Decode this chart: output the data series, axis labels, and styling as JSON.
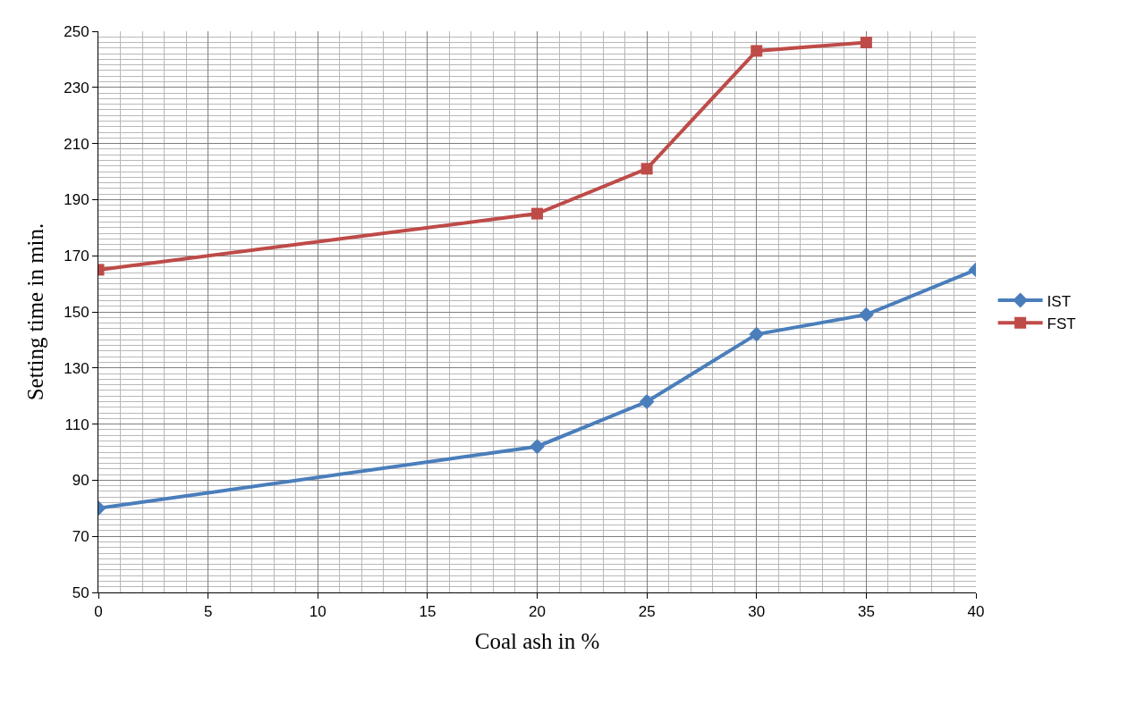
{
  "chart_data": {
    "type": "line",
    "xlabel": "Coal ash in %",
    "ylabel": "Setting time in min.",
    "x": [
      0,
      20,
      25,
      30,
      35,
      40
    ],
    "series": [
      {
        "name": "IST",
        "color": "#4a7ebb",
        "marker": "diamond",
        "values": [
          80,
          102,
          118,
          142,
          149,
          165
        ]
      },
      {
        "name": "FST",
        "color": "#be4b48",
        "marker": "square",
        "values": [
          165,
          185,
          201,
          243,
          246,
          null
        ]
      }
    ],
    "xlim": [
      0,
      40
    ],
    "xticks": [
      0,
      5,
      10,
      15,
      20,
      25,
      30,
      35,
      40
    ],
    "ylim": [
      50,
      250
    ],
    "yticks": [
      50,
      70,
      90,
      110,
      130,
      150,
      170,
      190,
      210,
      230,
      250
    ],
    "grid": true,
    "legend": "right",
    "line_style": "solid"
  }
}
